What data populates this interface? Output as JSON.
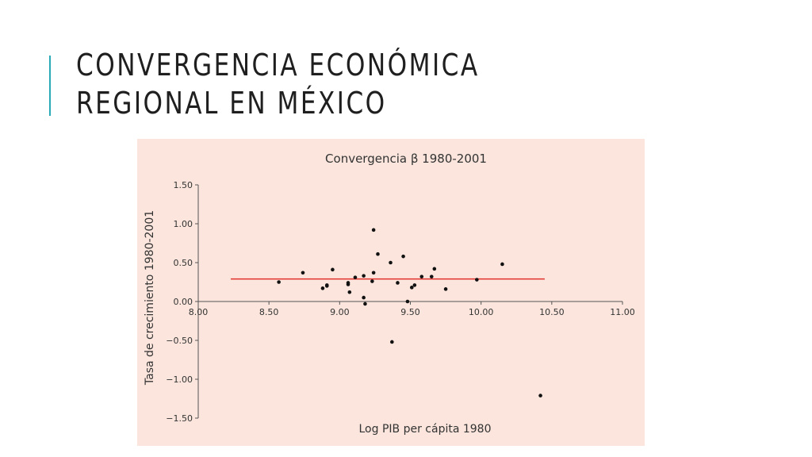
{
  "slide": {
    "title": "CONVERGENCIA ECONÓMICA REGIONAL EN MÉXICO",
    "accent_color": "#2aa9b7"
  },
  "chart_data": {
    "type": "scatter",
    "title": "Convergencia β 1980-2001",
    "xlabel": "Log PIB per cápita 1980",
    "ylabel": "Tasa de crecimiento 1980-2001",
    "xlim": [
      8.0,
      11.0
    ],
    "ylim": [
      -1.5,
      1.5
    ],
    "x_ticks": [
      "8.00",
      "8.50",
      "9.00",
      "9.50",
      "10.00",
      "10.50",
      "11.00"
    ],
    "y_ticks": [
      "1.50",
      "1.00",
      "0.50",
      "0.00",
      "-0.50",
      "-1.00",
      "-1.50"
    ],
    "background_color": "#fbe5dc",
    "point_color": "#111111",
    "trend_color": "#e0312b",
    "grid": false,
    "points": [
      {
        "x": 8.57,
        "y": 0.25
      },
      {
        "x": 8.74,
        "y": 0.37
      },
      {
        "x": 8.88,
        "y": 0.17
      },
      {
        "x": 8.91,
        "y": 0.2
      },
      {
        "x": 8.91,
        "y": 0.21
      },
      {
        "x": 8.95,
        "y": 0.41
      },
      {
        "x": 9.06,
        "y": 0.22
      },
      {
        "x": 9.06,
        "y": 0.24
      },
      {
        "x": 9.07,
        "y": 0.12
      },
      {
        "x": 9.11,
        "y": 0.31
      },
      {
        "x": 9.17,
        "y": 0.05
      },
      {
        "x": 9.17,
        "y": 0.33
      },
      {
        "x": 9.18,
        "y": -0.03
      },
      {
        "x": 9.23,
        "y": 0.26
      },
      {
        "x": 9.24,
        "y": 0.37
      },
      {
        "x": 9.24,
        "y": 0.92
      },
      {
        "x": 9.27,
        "y": 0.61
      },
      {
        "x": 9.36,
        "y": 0.5
      },
      {
        "x": 9.37,
        "y": -0.52
      },
      {
        "x": 9.41,
        "y": 0.24
      },
      {
        "x": 9.45,
        "y": 0.58
      },
      {
        "x": 9.48,
        "y": 0.0
      },
      {
        "x": 9.51,
        "y": 0.18
      },
      {
        "x": 9.53,
        "y": 0.21
      },
      {
        "x": 9.58,
        "y": 0.32
      },
      {
        "x": 9.65,
        "y": 0.32
      },
      {
        "x": 9.67,
        "y": 0.42
      },
      {
        "x": 9.75,
        "y": 0.16
      },
      {
        "x": 9.97,
        "y": 0.28
      },
      {
        "x": 10.15,
        "y": 0.48
      },
      {
        "x": 10.42,
        "y": -1.21
      }
    ],
    "trend_line": {
      "x": [
        8.23,
        10.45
      ],
      "y": [
        0.29,
        0.29
      ]
    }
  }
}
